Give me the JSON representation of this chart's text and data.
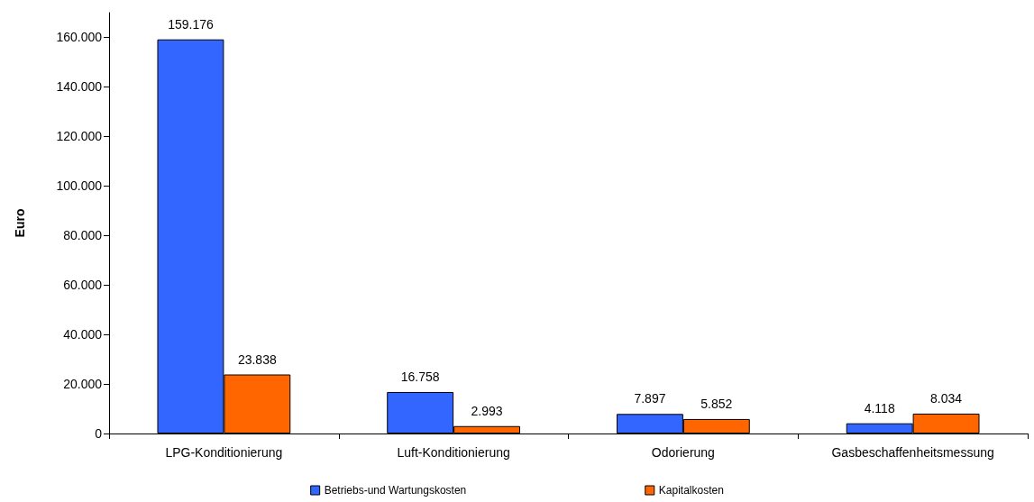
{
  "chart_data": {
    "type": "bar",
    "categories": [
      "LPG-Konditionierung",
      "Luft-Konditionierung",
      "Odorierung",
      "Gasbeschaffenheitsmessung"
    ],
    "series": [
      {
        "name": "Betriebs-und Wartungskosten",
        "color": "#3366ff",
        "values": [
          159176,
          16758,
          7897,
          4118
        ],
        "value_labels": [
          "159.176",
          "16.758",
          "7.897",
          "4.118"
        ]
      },
      {
        "name": "Kapitalkosten",
        "color": "#ff6600",
        "values": [
          23838,
          2993,
          5852,
          8034
        ],
        "value_labels": [
          "23.838",
          "2.993",
          "5.852",
          "8.034"
        ]
      }
    ],
    "ylabel": "Euro",
    "ylim": [
      0,
      170000
    ],
    "yticks": [
      0,
      {
        "value": 20000,
        "label": "20.000"
      },
      {
        "value": 40000,
        "label": "40.000"
      },
      {
        "value": 60000,
        "label": "60.000"
      },
      {
        "value": 80000,
        "label": "80.000"
      },
      {
        "value": 100000,
        "label": "100.000"
      },
      {
        "value": 120000,
        "label": "120.000"
      },
      {
        "value": 140000,
        "label": "140.000"
      },
      {
        "value": 160000,
        "label": "160.000"
      }
    ],
    "grid": false,
    "legend": "bottom"
  }
}
